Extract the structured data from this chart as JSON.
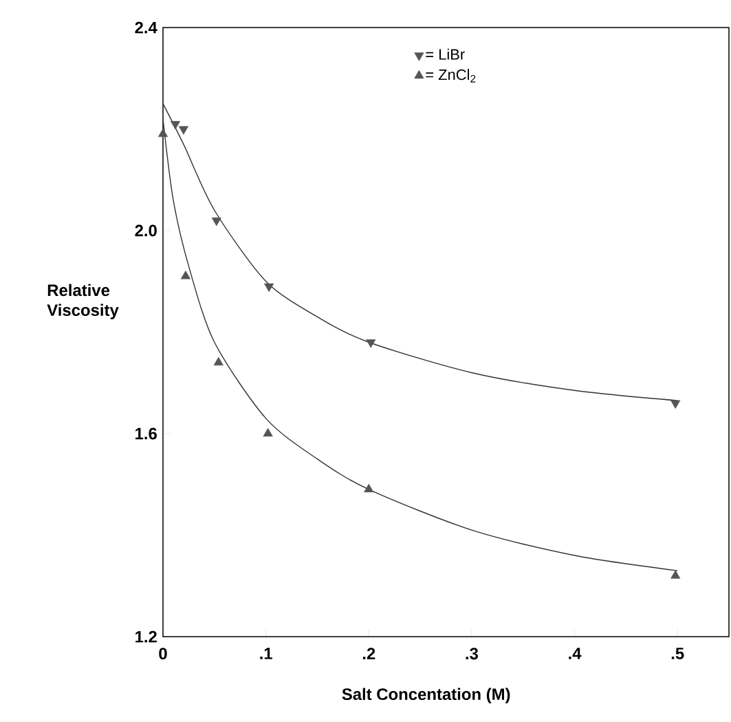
{
  "chart_data": {
    "type": "scatter",
    "xlabel": "Salt   Concentation   (M)",
    "ylabel": "Relative Viscosity",
    "xlim": [
      0,
      0.55
    ],
    "ylim": [
      1.2,
      2.4
    ],
    "xticks": [
      0,
      {
        "value": 0.1,
        "label": ".1"
      },
      {
        "value": 0.2,
        "label": ".2"
      },
      {
        "value": 0.3,
        "label": ".3"
      },
      {
        "value": 0.4,
        "label": ".4"
      },
      {
        "value": 0.5,
        "label": ".5"
      }
    ],
    "yticks": [
      1.2,
      1.6,
      {
        "value": 2,
        "label": "2.0"
      },
      2.4
    ],
    "grid": false,
    "legend": "top",
    "series": [
      {
        "name": "= LiBr",
        "marker": "triangle down",
        "color": "#555555",
        "x": [
          0.012,
          0.02,
          0.052,
          0.103,
          0.202,
          0.498
        ],
        "values": [
          2.21,
          2.2,
          2.02,
          1.89,
          1.78,
          1.66
        ]
      },
      {
        "name": "= ZnCl$_{2}$",
        "marker": "triangle",
        "color": "#555555",
        "x": [
          0,
          0.022,
          0.054,
          0.102,
          0.2,
          0.498
        ],
        "values": [
          2.19,
          1.91,
          1.74,
          1.6,
          1.49,
          1.32
        ]
      },
      {
        "type": "line",
        "marker": "none",
        "color": "#333333",
        "x": [
          0,
          0.02,
          0.05,
          0.1,
          0.15,
          0.2,
          0.3,
          0.4,
          0.5
        ],
        "values": [
          2.25,
          2.17,
          2.04,
          1.9,
          1.83,
          1.78,
          1.72,
          1.685,
          1.665
        ]
      },
      {
        "type": "line",
        "marker": "none",
        "color": "#333333",
        "x": [
          0,
          0.01,
          0.025,
          0.05,
          0.1,
          0.15,
          0.2,
          0.3,
          0.4,
          0.5
        ],
        "values": [
          2.22,
          2.06,
          1.93,
          1.78,
          1.63,
          1.55,
          1.49,
          1.41,
          1.36,
          1.33
        ]
      }
    ]
  }
}
